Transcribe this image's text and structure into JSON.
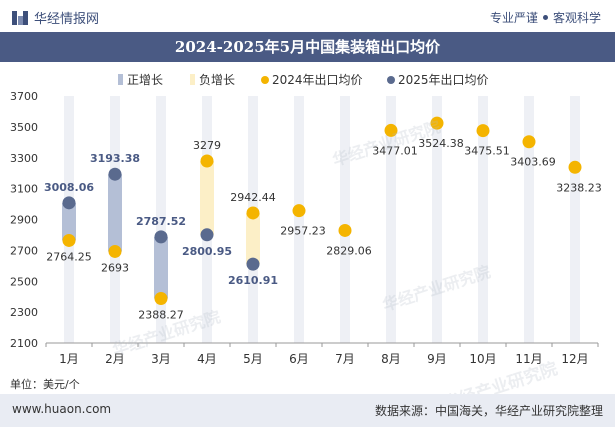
{
  "header": {
    "brand_name": "华经情报网",
    "slogan_left": "专业严谨",
    "slogan_right": "客观科学"
  },
  "title": "2024-2025年5月中国集装箱出口均价",
  "unit_label": "单位：美元/个",
  "footer": {
    "url": "www.huaon.com",
    "source": "数据来源：中国海关，华经产业研究院整理"
  },
  "watermark": {
    "text": "华经产业研究院",
    "url": "www.huaon.com"
  },
  "chart_data": {
    "type": "line",
    "categories": [
      "1月",
      "2月",
      "3月",
      "4月",
      "5月",
      "6月",
      "7月",
      "8月",
      "9月",
      "10月",
      "11月",
      "12月"
    ],
    "ylim": [
      2100,
      3700
    ],
    "yticks": [
      2100,
      2300,
      2500,
      2700,
      2900,
      3100,
      3300,
      3500,
      3700
    ],
    "legend": [
      "正增长",
      "负增长",
      "2024年出口均价",
      "2025年出口均价"
    ],
    "legend_position": "top",
    "series": [
      {
        "name": "2024年出口均价",
        "color": "#f4b400",
        "values": [
          2764.25,
          2693,
          2388.27,
          3279,
          2942.44,
          2957.23,
          2829.06,
          3477.01,
          3524.38,
          3475.51,
          3403.69,
          3238.23
        ]
      },
      {
        "name": "2025年出口均价",
        "color": "#5a6a8e",
        "values": [
          3008.06,
          3193.38,
          2787.52,
          2800.95,
          2610.91,
          null,
          null,
          null,
          null,
          null,
          null,
          null
        ]
      }
    ],
    "colors": {
      "positive_bar": "#b4bfd6",
      "negative_bar": "#fcefc7",
      "column_bg": "#eef0f5",
      "label_2025": "#4a5a84"
    }
  }
}
